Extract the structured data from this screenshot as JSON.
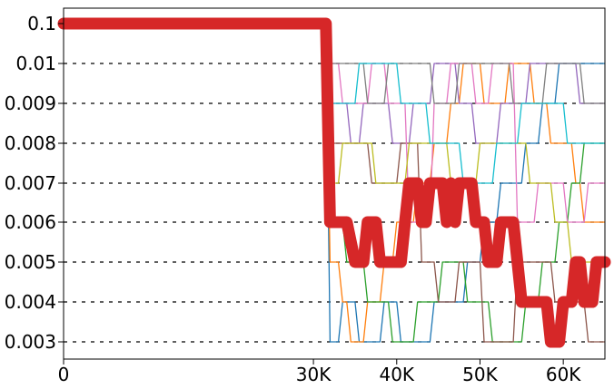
{
  "chart_data": {
    "type": "line",
    "title": "",
    "xlabel": "",
    "ylabel": "",
    "xlim": [
      0,
      65000
    ],
    "x_ticks": [
      0,
      30000,
      40000,
      50000,
      60000
    ],
    "x_tick_labels": [
      "0",
      "30K",
      "40K",
      "50K",
      "60K"
    ],
    "y_ticks": [
      0.1,
      0.01,
      0.009,
      0.008,
      0.007,
      0.006,
      0.005,
      0.004,
      0.003
    ],
    "y_tick_labels": [
      "0.1",
      "0.01",
      "0.009",
      "0.008",
      "0.007",
      "0.006",
      "0.005",
      "0.004",
      "0.003"
    ],
    "y_scale": "categorical-levels",
    "grid": "dashed horizontal lines at each level (right of 0.1 plateau)",
    "legend": "none",
    "highlight_series": {
      "color": "#d62728",
      "points": [
        [
          0,
          0.1
        ],
        [
          31500,
          0.1
        ],
        [
          32000,
          0.006
        ],
        [
          34000,
          0.006
        ],
        [
          35000,
          0.005
        ],
        [
          36000,
          0.005
        ],
        [
          36500,
          0.006
        ],
        [
          37500,
          0.006
        ],
        [
          38000,
          0.005
        ],
        [
          40500,
          0.005
        ],
        [
          41000,
          0.006
        ],
        [
          41500,
          0.007
        ],
        [
          42500,
          0.007
        ],
        [
          43000,
          0.006
        ],
        [
          43500,
          0.006
        ],
        [
          44000,
          0.007
        ],
        [
          45500,
          0.007
        ],
        [
          46000,
          0.006
        ],
        [
          46500,
          0.007
        ],
        [
          47000,
          0.006
        ],
        [
          47500,
          0.007
        ],
        [
          49000,
          0.007
        ],
        [
          49500,
          0.006
        ],
        [
          50500,
          0.006
        ],
        [
          51000,
          0.005
        ],
        [
          52000,
          0.005
        ],
        [
          52500,
          0.006
        ],
        [
          54000,
          0.006
        ],
        [
          55000,
          0.004
        ],
        [
          58000,
          0.004
        ],
        [
          58500,
          0.003
        ],
        [
          59500,
          0.003
        ],
        [
          60000,
          0.004
        ],
        [
          61000,
          0.004
        ],
        [
          61500,
          0.005
        ],
        [
          62000,
          0.005
        ],
        [
          62500,
          0.004
        ],
        [
          63500,
          0.004
        ],
        [
          64000,
          0.005
        ],
        [
          65000,
          0.005
        ]
      ]
    },
    "series": [
      {
        "color": "#1f77b4",
        "points": [
          [
            0,
            0.1
          ],
          [
            31500,
            0.1
          ],
          [
            32000,
            0.003
          ],
          [
            33000,
            0.003
          ],
          [
            33500,
            0.004
          ],
          [
            35000,
            0.004
          ],
          [
            35500,
            0.003
          ],
          [
            38000,
            0.003
          ],
          [
            38500,
            0.004
          ],
          [
            40000,
            0.004
          ],
          [
            40500,
            0.003
          ],
          [
            44000,
            0.003
          ],
          [
            44500,
            0.004
          ],
          [
            48000,
            0.004
          ],
          [
            48500,
            0.005
          ],
          [
            50000,
            0.005
          ],
          [
            50500,
            0.006
          ],
          [
            52000,
            0.006
          ],
          [
            52500,
            0.007
          ],
          [
            55000,
            0.007
          ],
          [
            55500,
            0.008
          ],
          [
            57000,
            0.008
          ],
          [
            57500,
            0.009
          ],
          [
            59000,
            0.009
          ],
          [
            59500,
            0.01
          ],
          [
            65000,
            0.01
          ]
        ]
      },
      {
        "color": "#ff7f0e",
        "points": [
          [
            0,
            0.1
          ],
          [
            31500,
            0.1
          ],
          [
            32000,
            0.005
          ],
          [
            33000,
            0.005
          ],
          [
            33500,
            0.004
          ],
          [
            34000,
            0.004
          ],
          [
            34500,
            0.003
          ],
          [
            36000,
            0.003
          ],
          [
            36500,
            0.004
          ],
          [
            38000,
            0.004
          ],
          [
            38500,
            0.005
          ],
          [
            39500,
            0.005
          ],
          [
            40000,
            0.006
          ],
          [
            42000,
            0.006
          ],
          [
            42500,
            0.007
          ],
          [
            44000,
            0.007
          ],
          [
            44500,
            0.008
          ],
          [
            46000,
            0.008
          ],
          [
            46500,
            0.009
          ],
          [
            47500,
            0.009
          ],
          [
            48000,
            0.01
          ],
          [
            50000,
            0.01
          ],
          [
            50500,
            0.009
          ],
          [
            53000,
            0.009
          ],
          [
            53500,
            0.01
          ],
          [
            56000,
            0.01
          ],
          [
            56500,
            0.009
          ],
          [
            58000,
            0.009
          ],
          [
            58500,
            0.008
          ],
          [
            61000,
            0.008
          ],
          [
            61500,
            0.007
          ],
          [
            62000,
            0.007
          ],
          [
            62500,
            0.006
          ],
          [
            65000,
            0.006
          ]
        ]
      },
      {
        "color": "#2ca02c",
        "points": [
          [
            0,
            0.1
          ],
          [
            31500,
            0.1
          ],
          [
            32000,
            0.006
          ],
          [
            33500,
            0.006
          ],
          [
            34000,
            0.005
          ],
          [
            36000,
            0.005
          ],
          [
            36500,
            0.004
          ],
          [
            39000,
            0.004
          ],
          [
            39500,
            0.003
          ],
          [
            42000,
            0.003
          ],
          [
            42500,
            0.004
          ],
          [
            45000,
            0.004
          ],
          [
            45500,
            0.005
          ],
          [
            48000,
            0.005
          ],
          [
            48500,
            0.004
          ],
          [
            51000,
            0.004
          ],
          [
            51500,
            0.003
          ],
          [
            55000,
            0.003
          ],
          [
            55500,
            0.004
          ],
          [
            57000,
            0.004
          ],
          [
            57500,
            0.005
          ],
          [
            59000,
            0.005
          ],
          [
            59500,
            0.006
          ],
          [
            60500,
            0.006
          ],
          [
            61000,
            0.007
          ],
          [
            62000,
            0.007
          ],
          [
            62500,
            0.008
          ],
          [
            65000,
            0.008
          ]
        ]
      },
      {
        "color": "#9467bd",
        "points": [
          [
            0,
            0.1
          ],
          [
            31500,
            0.1
          ],
          [
            32000,
            0.009
          ],
          [
            34000,
            0.009
          ],
          [
            34500,
            0.008
          ],
          [
            35500,
            0.008
          ],
          [
            36000,
            0.009
          ],
          [
            39000,
            0.009
          ],
          [
            39500,
            0.008
          ],
          [
            41500,
            0.008
          ],
          [
            42000,
            0.009
          ],
          [
            44000,
            0.009
          ],
          [
            44500,
            0.01
          ],
          [
            47000,
            0.01
          ],
          [
            47500,
            0.009
          ],
          [
            49000,
            0.009
          ],
          [
            49500,
            0.008
          ],
          [
            52000,
            0.008
          ],
          [
            52500,
            0.009
          ],
          [
            55500,
            0.009
          ],
          [
            56000,
            0.01
          ],
          [
            61500,
            0.01
          ],
          [
            62000,
            0.009
          ],
          [
            65000,
            0.009
          ]
        ]
      },
      {
        "color": "#8c564b",
        "points": [
          [
            0,
            0.1
          ],
          [
            31500,
            0.1
          ],
          [
            32000,
            0.008
          ],
          [
            36500,
            0.008
          ],
          [
            37000,
            0.007
          ],
          [
            40000,
            0.007
          ],
          [
            40500,
            0.008
          ],
          [
            42500,
            0.008
          ],
          [
            43000,
            0.005
          ],
          [
            44500,
            0.005
          ],
          [
            45000,
            0.004
          ],
          [
            47000,
            0.004
          ],
          [
            47500,
            0.005
          ],
          [
            50000,
            0.005
          ],
          [
            50500,
            0.003
          ],
          [
            54000,
            0.003
          ],
          [
            54500,
            0.005
          ],
          [
            58500,
            0.005
          ],
          [
            59000,
            0.004
          ],
          [
            62500,
            0.004
          ],
          [
            63000,
            0.003
          ],
          [
            65000,
            0.003
          ]
        ]
      },
      {
        "color": "#e377c2",
        "points": [
          [
            0,
            0.1
          ],
          [
            31500,
            0.1
          ],
          [
            32000,
            0.01
          ],
          [
            33000,
            0.01
          ],
          [
            33500,
            0.009
          ],
          [
            36500,
            0.009
          ],
          [
            37000,
            0.01
          ],
          [
            38500,
            0.01
          ],
          [
            39000,
            0.009
          ],
          [
            41000,
            0.009
          ],
          [
            41500,
            0.006
          ],
          [
            44000,
            0.006
          ],
          [
            44500,
            0.009
          ],
          [
            46000,
            0.009
          ],
          [
            46500,
            0.01
          ],
          [
            49000,
            0.01
          ],
          [
            49500,
            0.009
          ],
          [
            51000,
            0.009
          ],
          [
            51500,
            0.01
          ],
          [
            54000,
            0.01
          ],
          [
            54500,
            0.006
          ],
          [
            56500,
            0.006
          ],
          [
            57000,
            0.007
          ],
          [
            60000,
            0.007
          ],
          [
            60500,
            0.006
          ],
          [
            62500,
            0.006
          ],
          [
            63000,
            0.007
          ],
          [
            65000,
            0.007
          ]
        ]
      },
      {
        "color": "#7f7f7f",
        "points": [
          [
            0,
            0.1
          ],
          [
            31500,
            0.1
          ],
          [
            32000,
            0.01
          ],
          [
            36000,
            0.01
          ],
          [
            36500,
            0.009
          ],
          [
            38500,
            0.009
          ],
          [
            39000,
            0.01
          ],
          [
            44000,
            0.01
          ],
          [
            44500,
            0.009
          ],
          [
            47000,
            0.009
          ],
          [
            47500,
            0.01
          ],
          [
            53500,
            0.01
          ],
          [
            54000,
            0.009
          ],
          [
            57500,
            0.009
          ],
          [
            58000,
            0.01
          ],
          [
            62000,
            0.01
          ],
          [
            62500,
            0.009
          ],
          [
            65000,
            0.009
          ]
        ]
      },
      {
        "color": "#bcbd22",
        "points": [
          [
            0,
            0.1
          ],
          [
            31500,
            0.1
          ],
          [
            32000,
            0.007
          ],
          [
            33000,
            0.007
          ],
          [
            33500,
            0.008
          ],
          [
            37000,
            0.008
          ],
          [
            37500,
            0.007
          ],
          [
            41000,
            0.007
          ],
          [
            41500,
            0.008
          ],
          [
            46000,
            0.008
          ],
          [
            46500,
            0.007
          ],
          [
            49500,
            0.007
          ],
          [
            50000,
            0.008
          ],
          [
            55500,
            0.008
          ],
          [
            56000,
            0.007
          ],
          [
            58500,
            0.007
          ],
          [
            59000,
            0.006
          ],
          [
            60500,
            0.006
          ],
          [
            61000,
            0.005
          ],
          [
            65000,
            0.005
          ]
        ]
      },
      {
        "color": "#17becf",
        "points": [
          [
            0,
            0.1
          ],
          [
            31500,
            0.1
          ],
          [
            32000,
            0.009
          ],
          [
            35000,
            0.009
          ],
          [
            35500,
            0.01
          ],
          [
            40000,
            0.01
          ],
          [
            40500,
            0.009
          ],
          [
            43500,
            0.009
          ],
          [
            44000,
            0.008
          ],
          [
            47500,
            0.008
          ],
          [
            48000,
            0.007
          ],
          [
            51500,
            0.007
          ],
          [
            52000,
            0.008
          ],
          [
            54500,
            0.008
          ],
          [
            55000,
            0.009
          ],
          [
            60000,
            0.009
          ],
          [
            60500,
            0.008
          ],
          [
            65000,
            0.008
          ]
        ]
      }
    ]
  }
}
